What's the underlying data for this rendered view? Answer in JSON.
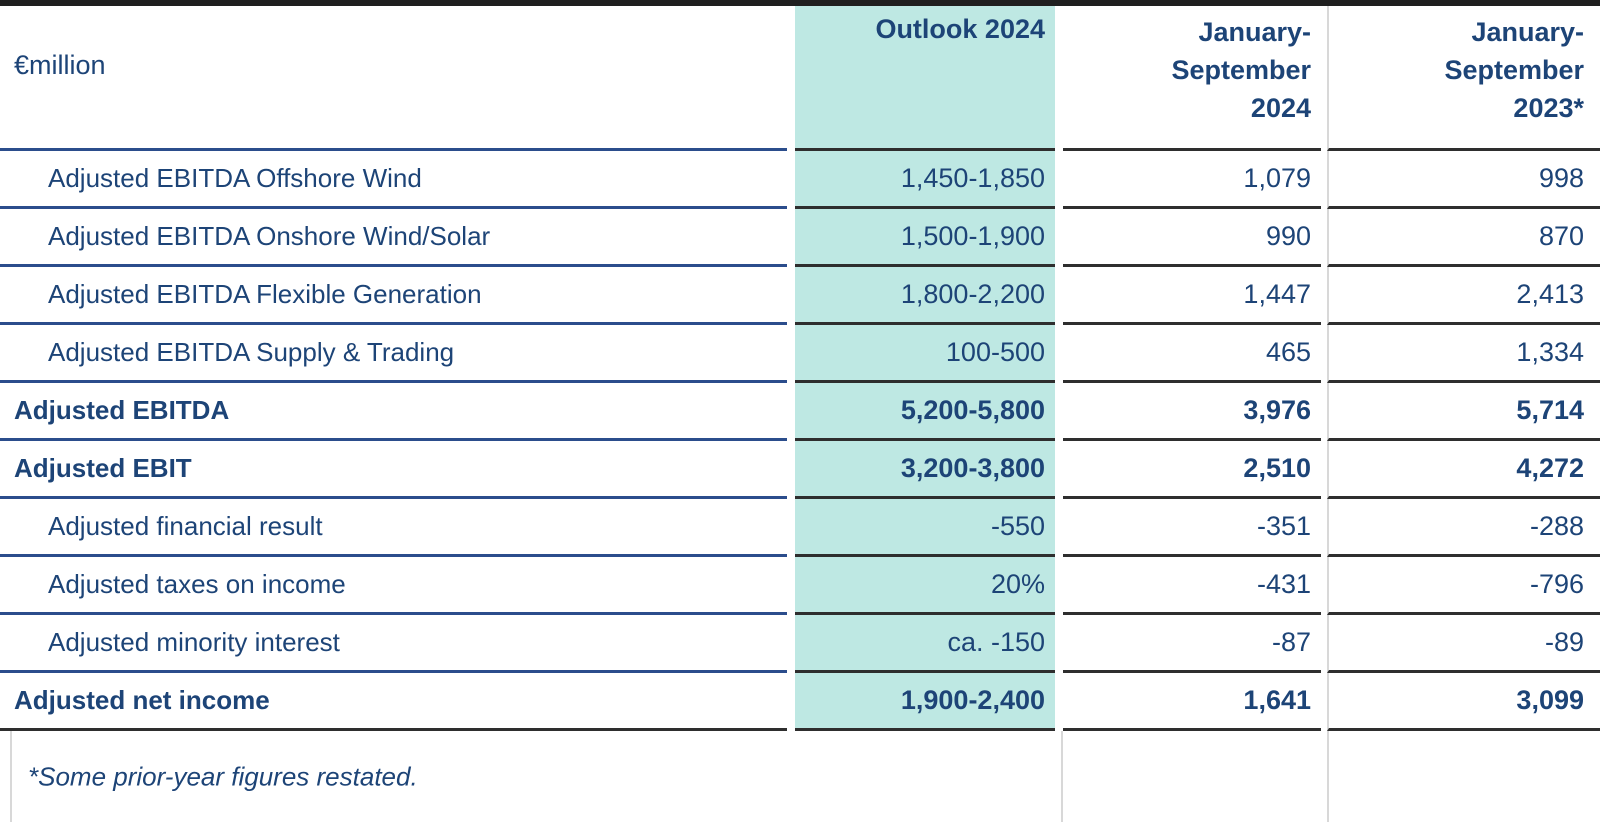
{
  "colors": {
    "navy": "#1d4477",
    "blue_line": "#2b4d8c",
    "dark_line": "#2e2e2e",
    "teal": "#bee8e3",
    "gray_line": "#d8d8d8",
    "topbar": "#1f1f1f"
  },
  "table": {
    "unit_label": "€million",
    "header": {
      "outlook": "Outlook 2024",
      "ytd_2024": "January-\nSeptember\n2024",
      "ytd_2023": "January-\nSeptember\n2023*"
    },
    "rows": [
      {
        "label": "Adjusted EBITDA Offshore Wind",
        "outlook": "1,450-1,850",
        "ytd_2024": "1,079",
        "ytd_2023": "998"
      },
      {
        "label": "Adjusted EBITDA Onshore Wind/Solar",
        "outlook": "1,500-1,900",
        "ytd_2024": "990",
        "ytd_2023": "870"
      },
      {
        "label": "Adjusted EBITDA Flexible Generation",
        "outlook": "1,800-2,200",
        "ytd_2024": "1,447",
        "ytd_2023": "2,413"
      },
      {
        "label": "Adjusted EBITDA Supply & Trading",
        "outlook": "100-500",
        "ytd_2024": "465",
        "ytd_2023": "1,334"
      },
      {
        "label": "Adjusted EBITDA",
        "outlook": "5,200-5,800",
        "ytd_2024": "3,976",
        "ytd_2023": "5,714"
      },
      {
        "label": "Adjusted EBIT",
        "outlook": "3,200-3,800",
        "ytd_2024": "2,510",
        "ytd_2023": "4,272"
      },
      {
        "label": "Adjusted financial result",
        "outlook": "-550",
        "ytd_2024": "-351",
        "ytd_2023": "-288"
      },
      {
        "label": "Adjusted taxes on income",
        "outlook": "20%",
        "ytd_2024": "-431",
        "ytd_2023": "-796"
      },
      {
        "label": "Adjusted minority interest",
        "outlook": "ca. -150",
        "ytd_2024": "-87",
        "ytd_2023": "-89"
      },
      {
        "label": "Adjusted net income",
        "outlook": "1,900-2,400",
        "ytd_2024": "1,641",
        "ytd_2023": "3,099"
      }
    ],
    "footnote": "*Some prior-year figures restated."
  }
}
